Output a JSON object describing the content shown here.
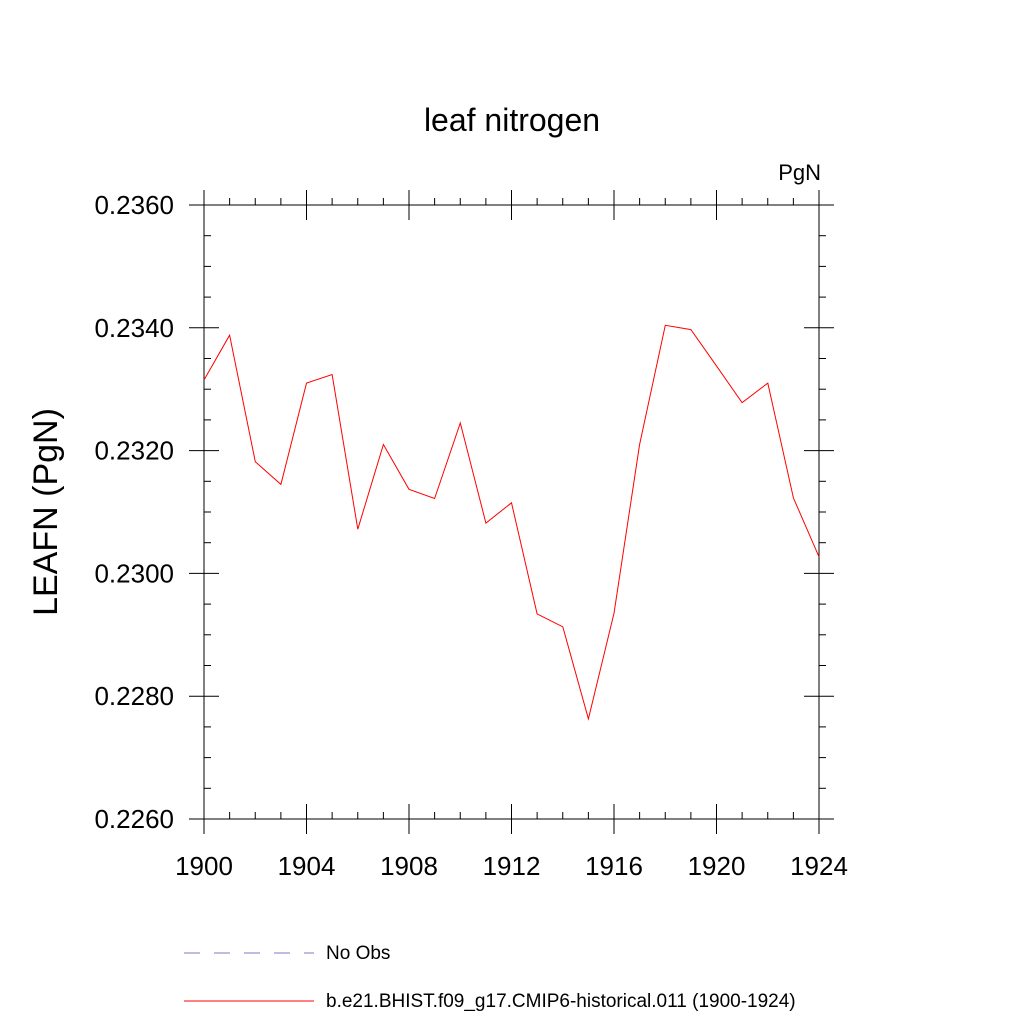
{
  "chart_data": {
    "type": "line",
    "title": "leaf nitrogen",
    "units_label": "PgN",
    "ylabel": "LEAFN  (PgN)",
    "xlabel": "",
    "xlim": [
      1900,
      1924
    ],
    "ylim": [
      0.226,
      0.236
    ],
    "x_ticks": [
      "1900",
      "1904",
      "1908",
      "1912",
      "1916",
      "1920",
      "1924"
    ],
    "y_ticks": [
      "0.2260",
      "0.2280",
      "0.2300",
      "0.2320",
      "0.2340",
      "0.2360"
    ],
    "x": [
      1900,
      1901,
      1902,
      1903,
      1904,
      1905,
      1906,
      1907,
      1908,
      1909,
      1910,
      1911,
      1912,
      1913,
      1914,
      1915,
      1916,
      1917,
      1918,
      1919,
      1920,
      1921,
      1922,
      1923,
      1924
    ],
    "series": [
      {
        "name": "b.e21.BHIST.f09_g17.CMIP6-historical.011 (1900-1924)",
        "color": "#ff0000",
        "style": "solid",
        "values": [
          0.23315,
          0.23388,
          0.23182,
          0.23145,
          0.2331,
          0.23324,
          0.23072,
          0.2321,
          0.23137,
          0.23122,
          0.23245,
          0.23082,
          0.23115,
          0.22934,
          0.22913,
          0.22763,
          0.22935,
          0.2321,
          0.23404,
          0.23397,
          0.23338,
          0.23278,
          0.2331,
          0.23123,
          0.23027
        ]
      }
    ],
    "legend": [
      {
        "label": "No Obs",
        "color": "#7b7bc8",
        "style": "dashed"
      },
      {
        "label": "b.e21.BHIST.f09_g17.CMIP6-historical.011 (1900-1924)",
        "color": "#ff0000",
        "style": "solid"
      }
    ],
    "legend_placement": "bottom",
    "grid": false
  }
}
